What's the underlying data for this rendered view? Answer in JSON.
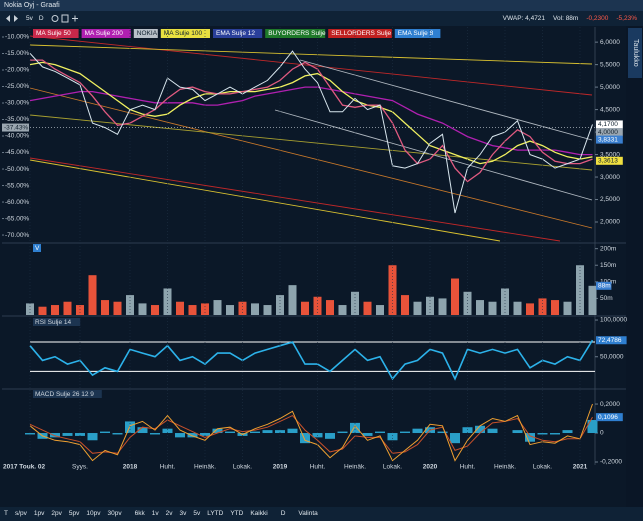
{
  "window": {
    "title": "Nokia Oyj - Graafi",
    "side_tab": "Taulukko"
  },
  "toolbar": {
    "buttons": [
      "5v",
      "D"
    ],
    "stats": [
      "VWAP: 4,4721",
      "Vol: 88m",
      "-0,2300",
      "-5,23%"
    ]
  },
  "legend": [
    {
      "label": "MA Sulje 50",
      "color": "#c8284a"
    },
    {
      "label": "MA Sulje 200",
      "color": "#b020b0"
    },
    {
      "label": "NOKIA",
      "color": "#b8c0c8"
    },
    {
      "label": "MA Sulje 100",
      "color": "#e8e040"
    },
    {
      "label": "EMA Sulje 12",
      "color": "#2a3f9a"
    },
    {
      "label": "BUYORDERS Sulje",
      "color": "#1f7a2a"
    },
    {
      "label": "SELLORDERS Sulje",
      "color": "#c02020"
    },
    {
      "label": "EMA Sulje 8",
      "color": "#2f7fd0"
    }
  ],
  "x_axis": {
    "categories": [
      "2017 Touk. 02",
      null,
      null,
      null,
      "Syys.",
      null,
      null,
      null,
      "2018",
      null,
      null,
      "Huht.",
      null,
      null,
      "Heinäk.",
      null,
      null,
      "Lokak.",
      null,
      null,
      "2019",
      null,
      null,
      "Huht.",
      null,
      null,
      "Heinäk.",
      null,
      null,
      "Lokak.",
      null,
      null,
      "2020",
      null,
      null,
      "Huht.",
      null,
      null,
      "Heinäk.",
      null,
      null,
      "Lokak.",
      null,
      null,
      "2021",
      null
    ]
  },
  "price": {
    "ylim": [
      1.6,
      6.27
    ],
    "yticks": [
      {
        "value": 6,
        "label": "6,0000"
      },
      {
        "value": 5.5,
        "label": "5,5000"
      },
      {
        "value": 5,
        "label": "5,0000"
      },
      {
        "value": 4.5,
        "label": "4,5000"
      },
      {
        "value": 4,
        "label": "4,0000"
      },
      {
        "value": 3.5,
        "label": "3,5000"
      },
      {
        "value": 3,
        "label": "3,0000"
      },
      {
        "value": 2.5,
        "label": "2,5000"
      },
      {
        "value": 2,
        "label": "2,0000"
      }
    ],
    "pct_ylim": [
      -71.5,
      -7.88
    ],
    "pct_ticks": [
      {
        "value": -10,
        "label": "-10.00%"
      },
      {
        "value": -15,
        "label": "-15.00%"
      },
      {
        "value": -20,
        "label": "-20.00%"
      },
      {
        "value": -25,
        "label": "-25.00%"
      },
      {
        "value": -30,
        "label": "-30.00%"
      },
      {
        "value": -35,
        "label": "-35.00%"
      },
      {
        "value": -40,
        "label": "-40.00%"
      },
      {
        "value": -45,
        "label": "-45.00%"
      },
      {
        "value": -50,
        "label": "-50.00%"
      },
      {
        "value": -55,
        "label": "-55.00%"
      },
      {
        "value": -60,
        "label": "-60.00%"
      },
      {
        "value": -65,
        "label": "-65.00%"
      },
      {
        "value": -70,
        "label": "-70.00%"
      }
    ],
    "pct_tag": {
      "value": -37.43,
      "label": "-37.43%"
    },
    "tags": [
      {
        "value": 4.17,
        "label": "4,1700",
        "color": "#ffffff"
      },
      {
        "value": 4.0,
        "label": "4,0000",
        "color": "#9aa6b0"
      },
      {
        "value": 3.8331,
        "label": "3,8331",
        "color": "#3a7fd0"
      },
      {
        "value": 3.3613,
        "label": "3,3613",
        "color": "#f0e040"
      }
    ],
    "series": [
      {
        "color": "#b020b0",
        "values": [
          4.7,
          4.75,
          4.8,
          4.85,
          4.9,
          4.9,
          4.85,
          4.8,
          4.75,
          4.7,
          4.65,
          4.65,
          4.65,
          4.65,
          4.6,
          4.6,
          4.65,
          4.7,
          4.8,
          4.85,
          4.9,
          4.95,
          5.0,
          5.0,
          4.95,
          4.9,
          4.85,
          4.8,
          4.75,
          4.7,
          4.55,
          4.4,
          4.3,
          4.2,
          4.05,
          3.9,
          3.8,
          3.7,
          3.65,
          3.6,
          3.6,
          3.6,
          3.6,
          3.55,
          3.5,
          3.5
        ]
      },
      {
        "color": "#f0f060",
        "values": [
          5.5,
          5.55,
          5.5,
          5.4,
          5.3,
          5.1,
          4.9,
          4.7,
          4.5,
          4.4,
          4.35,
          4.4,
          4.6,
          4.75,
          4.85,
          4.85,
          4.9,
          4.9,
          4.9,
          4.95,
          5.0,
          5.1,
          5.25,
          5.3,
          5.15,
          4.9,
          4.7,
          4.6,
          4.55,
          4.45,
          4.2,
          3.95,
          3.7,
          3.6,
          3.5,
          3.4,
          3.3,
          3.35,
          3.5,
          3.7,
          3.8,
          3.7,
          3.55,
          3.45,
          3.4,
          3.45
        ]
      },
      {
        "color": "#e05a80",
        "values": [
          5.6,
          5.6,
          5.4,
          5.25,
          5.1,
          4.8,
          4.45,
          4.15,
          4.2,
          4.35,
          4.5,
          4.75,
          4.95,
          5.0,
          4.9,
          4.85,
          4.85,
          4.9,
          4.95,
          5.0,
          5.15,
          5.4,
          5.55,
          5.4,
          5.0,
          4.6,
          4.55,
          4.6,
          4.6,
          4.2,
          3.6,
          3.3,
          3.4,
          3.7,
          3.2,
          2.9,
          3.1,
          3.5,
          3.8,
          4.05,
          3.9,
          3.55,
          3.35,
          3.3,
          3.3,
          3.4
        ]
      },
      {
        "color": "#d8e6ee",
        "values": [
          5.75,
          5.45,
          5.35,
          5.2,
          5.05,
          4.2,
          4.1,
          3.95,
          4.5,
          4.6,
          4.5,
          5.2,
          5.0,
          4.95,
          4.7,
          4.85,
          5.0,
          4.85,
          5.0,
          5.15,
          5.45,
          5.8,
          5.4,
          5.1,
          4.45,
          4.45,
          4.75,
          4.5,
          4.6,
          3.25,
          3.2,
          3.3,
          3.75,
          3.95,
          2.2,
          3.2,
          3.5,
          3.9,
          4.0,
          4.25,
          3.5,
          3.4,
          3.2,
          3.3,
          3.4,
          4.17
        ]
      }
    ]
  },
  "volume": {
    "label": "V",
    "ylim": [
      0,
      205
    ],
    "yticks": [
      {
        "value": 200,
        "label": "200m"
      },
      {
        "value": 150,
        "label": "150m"
      },
      {
        "value": 100,
        "label": "100m"
      },
      {
        "value": 50,
        "label": "50m"
      }
    ],
    "up_color": "#8ea4ae",
    "down_color": "#e8533a",
    "values": [
      35,
      25,
      30,
      40,
      30,
      120,
      45,
      40,
      60,
      35,
      30,
      80,
      40,
      30,
      35,
      45,
      30,
      40,
      35,
      30,
      60,
      90,
      40,
      55,
      45,
      30,
      70,
      40,
      30,
      150,
      60,
      40,
      55,
      50,
      110,
      70,
      45,
      40,
      80,
      40,
      35,
      50,
      45,
      40,
      150,
      88
    ],
    "tag": {
      "value": 88,
      "label": "88m",
      "color": "#3a7fd0"
    }
  },
  "rsi": {
    "label": "RSI Sulje 14",
    "ylim": [
      8.8,
      101.4
    ],
    "color": "#2cb2ea",
    "yticks": [
      {
        "value": 100,
        "label": "100,0000"
      },
      {
        "value": 50,
        "label": "50,0000"
      }
    ],
    "levels": [
      70,
      30
    ],
    "values": [
      65,
      45,
      50,
      40,
      45,
      25,
      35,
      30,
      60,
      55,
      50,
      65,
      45,
      50,
      40,
      55,
      55,
      45,
      55,
      60,
      65,
      70,
      40,
      40,
      30,
      45,
      60,
      45,
      50,
      20,
      40,
      45,
      60,
      55,
      20,
      60,
      55,
      60,
      55,
      60,
      35,
      45,
      40,
      50,
      45,
      72.48
    ],
    "tag": {
      "value": 72.4786,
      "label": "72,4786",
      "color": "#2f7fd0"
    }
  },
  "macd": {
    "label": "MACD Sulje 26 12 9",
    "ylim": [
      -0.2,
      0.29
    ],
    "yticks": [
      {
        "value": 0.2,
        "label": "0,2000"
      },
      0,
      {
        "value": -0.2,
        "label": "-0,2000"
      }
    ],
    "macd_color": "#f0a030",
    "signal_color": "#c8502a",
    "hist_color": "#2a9fc8",
    "macd": [
      0.05,
      -0.02,
      -0.05,
      -0.06,
      -0.08,
      -0.19,
      -0.12,
      -0.15,
      0.05,
      0.08,
      0.02,
      0.12,
      0.02,
      -0.02,
      -0.05,
      0.03,
      0.04,
      -0.01,
      0.03,
      0.06,
      0.1,
      0.15,
      -0.05,
      -0.08,
      -0.17,
      -0.1,
      0.05,
      -0.05,
      -0.02,
      -0.19,
      -0.12,
      -0.05,
      0.06,
      0.05,
      -0.19,
      -0.05,
      0.05,
      0.1,
      0.08,
      0.12,
      -0.08,
      -0.06,
      -0.07,
      -0.02,
      -0.04,
      0.2
    ],
    "signal": [
      0.06,
      0.02,
      -0.02,
      -0.04,
      -0.06,
      -0.14,
      -0.13,
      -0.14,
      -0.03,
      0.04,
      0.03,
      0.09,
      0.05,
      0.01,
      -0.03,
      0.0,
      0.03,
      0.01,
      0.02,
      0.04,
      0.08,
      0.12,
      0.02,
      -0.05,
      -0.13,
      -0.11,
      -0.02,
      -0.03,
      -0.03,
      -0.14,
      -0.13,
      -0.08,
      0.02,
      0.04,
      -0.12,
      -0.09,
      0.0,
      0.07,
      0.08,
      0.1,
      -0.02,
      -0.05,
      -0.06,
      -0.04,
      -0.04,
      0.1096
    ],
    "histogram": [
      -0.01,
      -0.04,
      -0.03,
      -0.02,
      -0.02,
      -0.05,
      0.01,
      -0.01,
      0.08,
      0.04,
      -0.01,
      0.03,
      -0.03,
      -0.03,
      -0.02,
      0.03,
      0.01,
      -0.02,
      0.01,
      0.02,
      0.02,
      0.03,
      -0.07,
      -0.03,
      -0.04,
      0.01,
      0.07,
      -0.02,
      0.01,
      -0.05,
      0.01,
      0.03,
      0.04,
      0.01,
      -0.07,
      0.04,
      0.05,
      0.03,
      0.0,
      0.02,
      -0.06,
      -0.01,
      -0.01,
      0.02,
      0.0,
      0.09
    ],
    "tag": {
      "value": 0.1096,
      "label": "0,1096",
      "color": "#2f7fd0"
    }
  },
  "bottom_toolbar": [
    "T",
    "s/pv",
    "1pv",
    "2pv",
    "5pv",
    "10pv",
    "30pv",
    "6kk",
    "1v",
    "2v",
    "3v",
    "5v",
    "LYTD",
    "YTD",
    "Kaikki",
    "D",
    "Valinta"
  ]
}
